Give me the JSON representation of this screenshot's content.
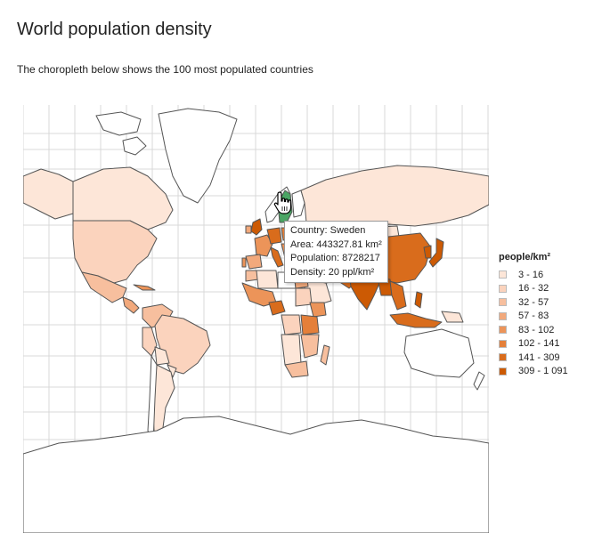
{
  "title": "World population density",
  "description": "The choropleth below shows the 100 most populated countries",
  "legend": {
    "title": "people/km²",
    "items": [
      {
        "label": "3 - 16",
        "color": "#fde6d8"
      },
      {
        "label": "16 - 32",
        "color": "#fbd3bd"
      },
      {
        "label": "32 - 57",
        "color": "#f7bf9e"
      },
      {
        "label": "57 - 83",
        "color": "#f2a97c"
      },
      {
        "label": "83 - 102",
        "color": "#ec9459"
      },
      {
        "label": "102 - 141",
        "color": "#e47f39"
      },
      {
        "label": "141 - 309",
        "color": "#d96c1c"
      },
      {
        "label": "309 - 1 091",
        "color": "#cc5a04"
      }
    ]
  },
  "tooltip": {
    "country": "Country: Sweden",
    "area": "Area: 443327.81 km²",
    "population": "Population: 8728217",
    "density": "Density: 20 ppl/km²"
  },
  "colors": {
    "highlight": "#4aa564",
    "border": "#555555",
    "graticule": "#d9d9d9",
    "no_data": "#ffffff"
  },
  "icons": {
    "cursor": "hand-pointer-icon"
  }
}
